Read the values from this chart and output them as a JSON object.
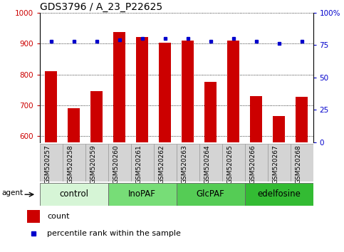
{
  "title": "GDS3796 / A_23_P22625",
  "samples": [
    "GSM520257",
    "GSM520258",
    "GSM520259",
    "GSM520260",
    "GSM520261",
    "GSM520262",
    "GSM520263",
    "GSM520264",
    "GSM520265",
    "GSM520266",
    "GSM520267",
    "GSM520268"
  ],
  "counts": [
    810,
    690,
    745,
    937,
    920,
    903,
    910,
    775,
    910,
    730,
    665,
    727
  ],
  "percentiles": [
    78,
    78,
    78,
    79,
    80,
    80,
    80,
    78,
    80,
    78,
    76,
    78
  ],
  "ylim_left": [
    580,
    1000
  ],
  "ylim_right": [
    0,
    100
  ],
  "yticks_left": [
    600,
    700,
    800,
    900,
    1000
  ],
  "yticks_right": [
    0,
    25,
    50,
    75,
    100
  ],
  "groups": [
    {
      "label": "control",
      "start": 0,
      "end": 3,
      "color": "#d6f5d6"
    },
    {
      "label": "InoPAF",
      "start": 3,
      "end": 6,
      "color": "#77dd77"
    },
    {
      "label": "GlcPAF",
      "start": 6,
      "end": 9,
      "color": "#55cc55"
    },
    {
      "label": "edelfosine",
      "start": 9,
      "end": 12,
      "color": "#33bb33"
    }
  ],
  "bar_color": "#cc0000",
  "dot_color": "#0000cc",
  "bar_width": 0.55,
  "grid_color": "#000000",
  "label_color_left": "#cc0000",
  "label_color_right": "#0000cc",
  "legend_count_label": "count",
  "legend_pct_label": "percentile rank within the sample",
  "agent_label": "agent",
  "title_fontsize": 10,
  "tick_fontsize": 7.5,
  "group_label_fontsize": 8.5,
  "sample_label_fontsize": 6.5
}
